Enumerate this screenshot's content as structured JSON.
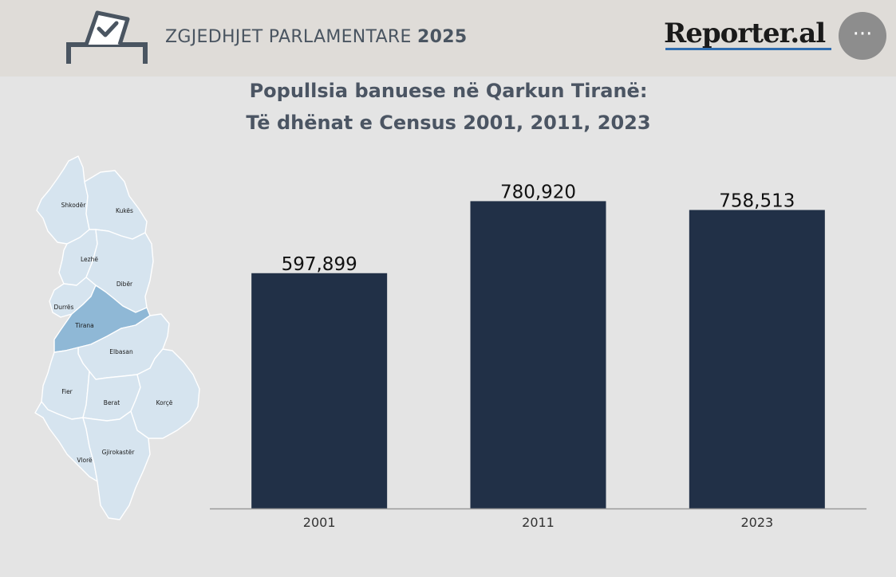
{
  "header": {
    "title_main": "ZGJEDHJET PARLAMENTARE",
    "title_year": "2025",
    "brand": "Reporter.al",
    "more_label": "···"
  },
  "title": {
    "line1": "Popullsia banuese në Qarkun Tiranë:",
    "line2": "Të dhënat e Census 2001, 2011, 2023"
  },
  "map": {
    "regions": [
      "Shkodër",
      "Kukës",
      "Lezhë",
      "Dibër",
      "Durrës",
      "Tirana",
      "Elbasan",
      "Fier",
      "Berat",
      "Korçë",
      "Vlorë",
      "Gjirokastër"
    ],
    "highlighted": "Tirana",
    "highlight_color": "#8fb8d6",
    "base_color": "#d6e4ef"
  },
  "chart_data": {
    "type": "bar",
    "categories": [
      "2001",
      "2011",
      "2023"
    ],
    "values": [
      597899,
      780920,
      758513
    ],
    "value_labels": [
      "597,899",
      "780,920",
      "758,513"
    ],
    "title": "Popullsia banuese në Qarkun Tiranë: Të dhënat e Census 2001, 2011, 2023",
    "xlabel": "",
    "ylabel": "",
    "ylim": [
      0,
      800000
    ],
    "grid": false,
    "bar_color": "#213047"
  }
}
